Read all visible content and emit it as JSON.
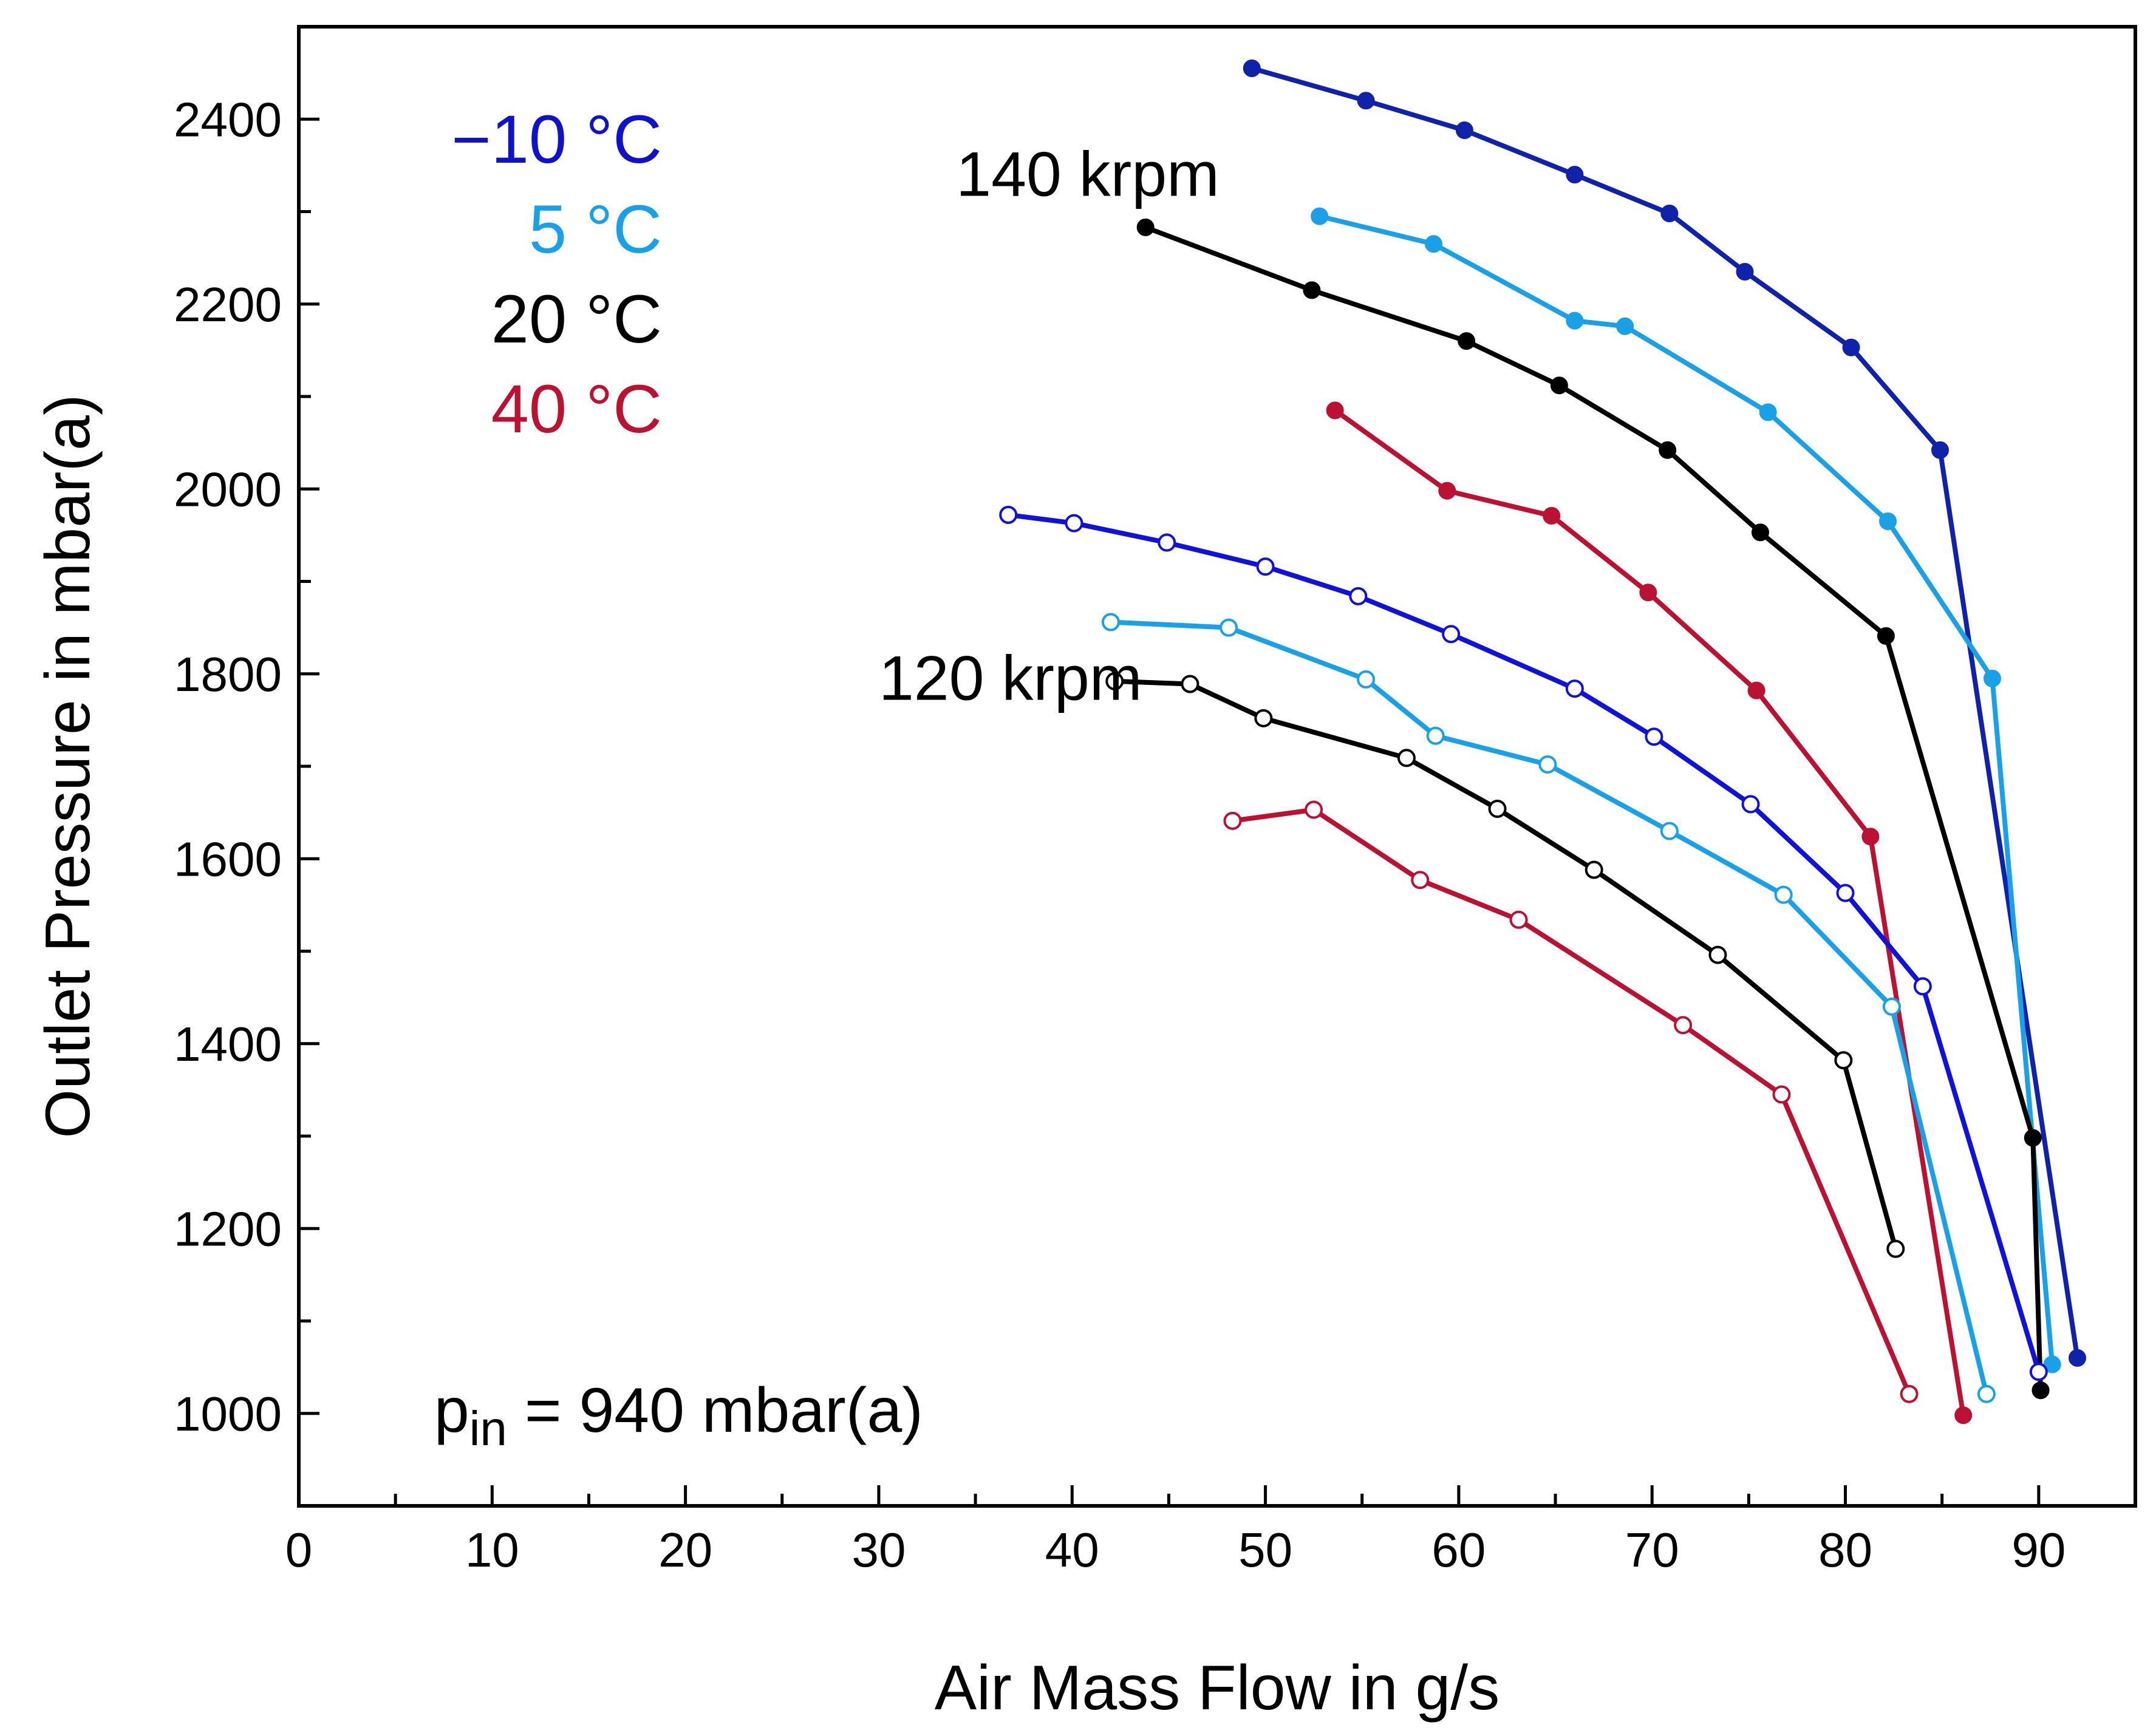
{
  "chart_data": {
    "type": "line",
    "title": "",
    "xlabel": "Air Mass Flow in g/s",
    "ylabel": "Outlet Pressure in mbar(a)",
    "xlim": [
      0,
      95
    ],
    "ylim": [
      900,
      2500
    ],
    "xticks": [
      0,
      10,
      20,
      30,
      40,
      50,
      60,
      70,
      80,
      90
    ],
    "yticks": [
      1000,
      1200,
      1400,
      1600,
      1800,
      2000,
      2200,
      2400
    ],
    "xtick_labels": [
      "0",
      "10",
      "20",
      "30",
      "40",
      "50",
      "60",
      "70",
      "80",
      "90"
    ],
    "ytick_labels": [
      "1000",
      "1200",
      "1400",
      "1600",
      "1800",
      "2000",
      "2200",
      "2400"
    ],
    "grid": false,
    "legend": {
      "position": "top-left",
      "entries": [
        {
          "label": "−10 °C",
          "color": "#1111cc"
        },
        {
          "label": "5 °C",
          "color": "#1aa0e6"
        },
        {
          "label": "20 °C",
          "color": "#000000"
        },
        {
          "label": "40 °C",
          "color": "#bb1133"
        }
      ]
    },
    "annotations": [
      {
        "id": "speed-140",
        "text": "140 krpm",
        "x": 34,
        "y": 2340
      },
      {
        "id": "speed-120",
        "text": "120 krpm",
        "x": 30,
        "y": 1795
      },
      {
        "id": "inlet-pressure",
        "prefix": "p",
        "subscript": "in",
        "suffix": " = 940 mbar(a)",
        "x": 7,
        "y": 1000
      }
    ],
    "series": [
      {
        "name": "140 krpm −10 °C",
        "temperature": "−10 °C",
        "speed": "140 krpm",
        "color": "#1122aa",
        "marker": "filled",
        "x": [
          49.3,
          55.2,
          60.3,
          66.0,
          70.9,
          74.8,
          80.3,
          84.9,
          92.0
        ],
        "y": [
          2455,
          2420,
          2388,
          2340,
          2298,
          2235,
          2153,
          2042,
          1060
        ]
      },
      {
        "name": "140 krpm 5 °C",
        "temperature": "5 °C",
        "speed": "140 krpm",
        "color": "#1aa0e6",
        "marker": "filled",
        "x": [
          52.8,
          58.7,
          66.0,
          68.6,
          76.0,
          82.2,
          87.6,
          90.7
        ],
        "y": [
          2295,
          2265,
          2182,
          2176,
          2083,
          1965,
          1795,
          1053
        ]
      },
      {
        "name": "140 krpm 20 °C",
        "temperature": "20 °C",
        "speed": "140 krpm",
        "color": "#000000",
        "marker": "filled",
        "x": [
          43.8,
          52.4,
          60.4,
          65.2,
          70.8,
          75.6,
          82.1,
          89.7,
          90.1
        ],
        "y": [
          2283,
          2215,
          2160,
          2112,
          2042,
          1953,
          1841,
          1298,
          1025
        ]
      },
      {
        "name": "140 krpm 40 °C",
        "temperature": "40 °C",
        "speed": "140 krpm",
        "color": "#bb1133",
        "marker": "filled",
        "x": [
          53.6,
          59.4,
          64.8,
          69.8,
          75.4,
          81.3,
          86.1
        ],
        "y": [
          2085,
          1998,
          1971,
          1888,
          1782,
          1624,
          998
        ]
      },
      {
        "name": "120 krpm −10 °C",
        "temperature": "−10 °C",
        "speed": "120 krpm",
        "color": "#1111dd",
        "marker": "open",
        "x": [
          36.7,
          40.1,
          44.9,
          50.0,
          54.8,
          59.6,
          66.0,
          70.1,
          75.1,
          80.0,
          84.0,
          90.0
        ],
        "y": [
          1972,
          1963,
          1942,
          1916,
          1884,
          1843,
          1784,
          1732,
          1659,
          1563,
          1462,
          1045
        ]
      },
      {
        "name": "120 krpm 5 °C",
        "temperature": "5 °C",
        "speed": "120 krpm",
        "color": "#1aa0e6",
        "marker": "open",
        "x": [
          42.0,
          48.1,
          55.2,
          58.8,
          64.6,
          70.9,
          76.8,
          82.4,
          87.3
        ],
        "y": [
          1856,
          1850,
          1794,
          1733,
          1702,
          1630,
          1561,
          1440,
          1021
        ]
      },
      {
        "name": "120 krpm 20 °C",
        "temperature": "20 °C",
        "speed": "120 krpm",
        "color": "#000000",
        "marker": "open",
        "x": [
          42.2,
          46.1,
          49.9,
          57.3,
          62.0,
          67.0,
          73.4,
          79.9,
          82.6
        ],
        "y": [
          1792,
          1789,
          1752,
          1709,
          1654,
          1588,
          1496,
          1382,
          1178
        ]
      },
      {
        "name": "120 krpm 40 °C",
        "temperature": "40 °C",
        "speed": "120 krpm",
        "color": "#bb1133",
        "marker": "open",
        "x": [
          48.3,
          52.5,
          58.0,
          63.1,
          71.6,
          76.7,
          83.3
        ],
        "y": [
          1641,
          1653,
          1577,
          1534,
          1420,
          1345,
          1021
        ]
      }
    ]
  }
}
